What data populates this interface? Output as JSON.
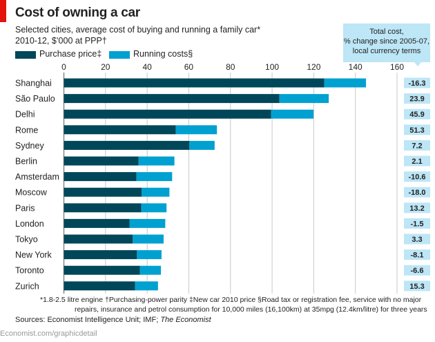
{
  "header": {
    "title": "Cost of owning a car",
    "subtitle_line1": "Selected cities, average cost of buying and running a family car*",
    "subtitle_line2": "2010-12, $’000 at PPP†"
  },
  "right_column_header": {
    "line1": "Total cost,",
    "line2": "% change since 2005-07,",
    "line3": "local currency terms"
  },
  "colors": {
    "purchase": "#004759",
    "running": "#00a1d0",
    "change_box": "#bde6f6",
    "brand_red": "#e3120b",
    "gridline": "#c8c8c8"
  },
  "chart_data": {
    "type": "bar",
    "orientation": "horizontal",
    "stacked": true,
    "title": "Cost of owning a car",
    "xlim": [
      0,
      160
    ],
    "xticks": [
      0,
      20,
      40,
      60,
      80,
      100,
      120,
      140,
      160
    ],
    "grid": true,
    "legend_position": "top-left",
    "categories": [
      "Shanghai",
      "São Paulo",
      "Delhi",
      "Rome",
      "Sydney",
      "Berlin",
      "Amsterdam",
      "Moscow",
      "Paris",
      "London",
      "Tokyo",
      "New York",
      "Toronto",
      "Zurich"
    ],
    "series": [
      {
        "name": "Purchase price‡",
        "values": [
          125.1,
          103.5,
          99.5,
          53.7,
          60.3,
          35.9,
          34.8,
          37.4,
          37.2,
          31.5,
          33.1,
          35.1,
          36.5,
          34.2
        ]
      },
      {
        "name": "Running costs§",
        "values": [
          20.0,
          23.7,
          20.4,
          19.8,
          12.1,
          17.2,
          17.2,
          13.3,
          12.1,
          17.2,
          14.8,
          11.8,
          10.1,
          11.0
        ]
      }
    ],
    "total_cost_pct_change": [
      "-16.3",
      "23.9",
      "45.9",
      "51.3",
      "7.2",
      "2.1",
      "-10.6",
      "-18.0",
      "13.2",
      "-1.5",
      "3.3",
      "-8.1",
      "-6.6",
      "15.3"
    ]
  },
  "footnotes": {
    "line1": "*1.8-2.5 litre engine   †Purchasing-power parity   ‡New car 2010 price   §Road tax or registration fee, service with no major",
    "line2": "repairs, insurance and petrol consumption for 10,000 miles (16,100km) at 35mpg (12.4km/litre) for three years",
    "sources_prefix": "Sources: Economist Intelligence Unit; IMF; ",
    "sources_italic": "The Economist"
  },
  "url": "Economist.com/graphicdetail"
}
